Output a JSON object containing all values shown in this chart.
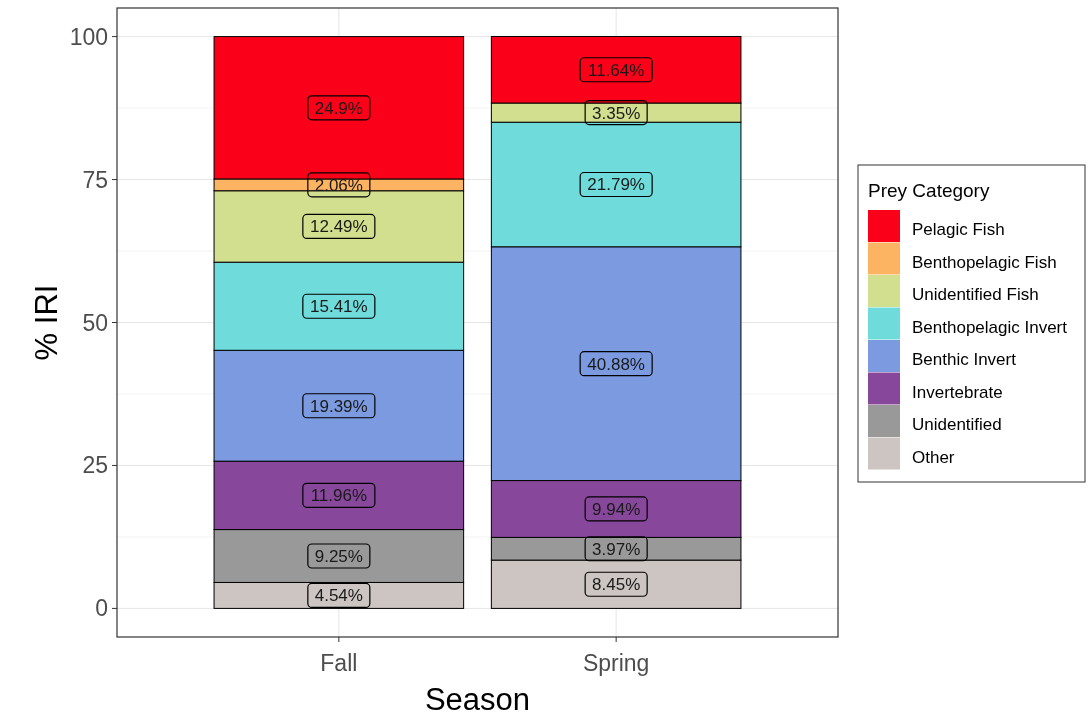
{
  "chart_data": {
    "type": "bar",
    "stacked": true,
    "xlabel": "Season",
    "ylabel": "% IRI",
    "legend_title": "Prey Category",
    "legend": "right",
    "grid": true,
    "categories": [
      "Fall",
      "Spring"
    ],
    "ylim": [
      -5,
      105
    ],
    "yticks": [
      0,
      25,
      50,
      75,
      100
    ],
    "series": [
      {
        "name": "Other",
        "color": "#ccc5c1",
        "values": [
          4.54,
          8.45
        ],
        "value_labels": [
          "4.54%",
          "8.45%"
        ]
      },
      {
        "name": "Unidentified",
        "color": "#999999",
        "values": [
          9.25,
          3.97
        ],
        "value_labels": [
          "9.25%",
          "3.97%"
        ]
      },
      {
        "name": "Invertebrate",
        "color": "#87479a",
        "values": [
          11.96,
          9.94
        ],
        "value_labels": [
          "11.96%",
          "9.94%"
        ]
      },
      {
        "name": "Benthic Invert",
        "color": "#7b9ae0",
        "values": [
          19.39,
          40.88
        ],
        "value_labels": [
          "19.39%",
          "40.88%"
        ]
      },
      {
        "name": "Benthopelagic Invert",
        "color": "#6fdbdb",
        "values": [
          15.41,
          21.79
        ],
        "value_labels": [
          "15.41%",
          "21.79%"
        ]
      },
      {
        "name": "Unidentified Fish",
        "color": "#d1df8f",
        "values": [
          12.49,
          3.35
        ],
        "value_labels": [
          "12.49%",
          "3.35%"
        ]
      },
      {
        "name": "Benthopelagic Fish",
        "color": "#fdb462",
        "values": [
          2.06,
          0
        ],
        "value_labels": [
          "2.06%",
          null
        ]
      },
      {
        "name": "Pelagic Fish",
        "color": "#fa0019",
        "values": [
          24.9,
          11.64
        ],
        "value_labels": [
          "24.9%",
          "11.64%"
        ]
      }
    ]
  }
}
